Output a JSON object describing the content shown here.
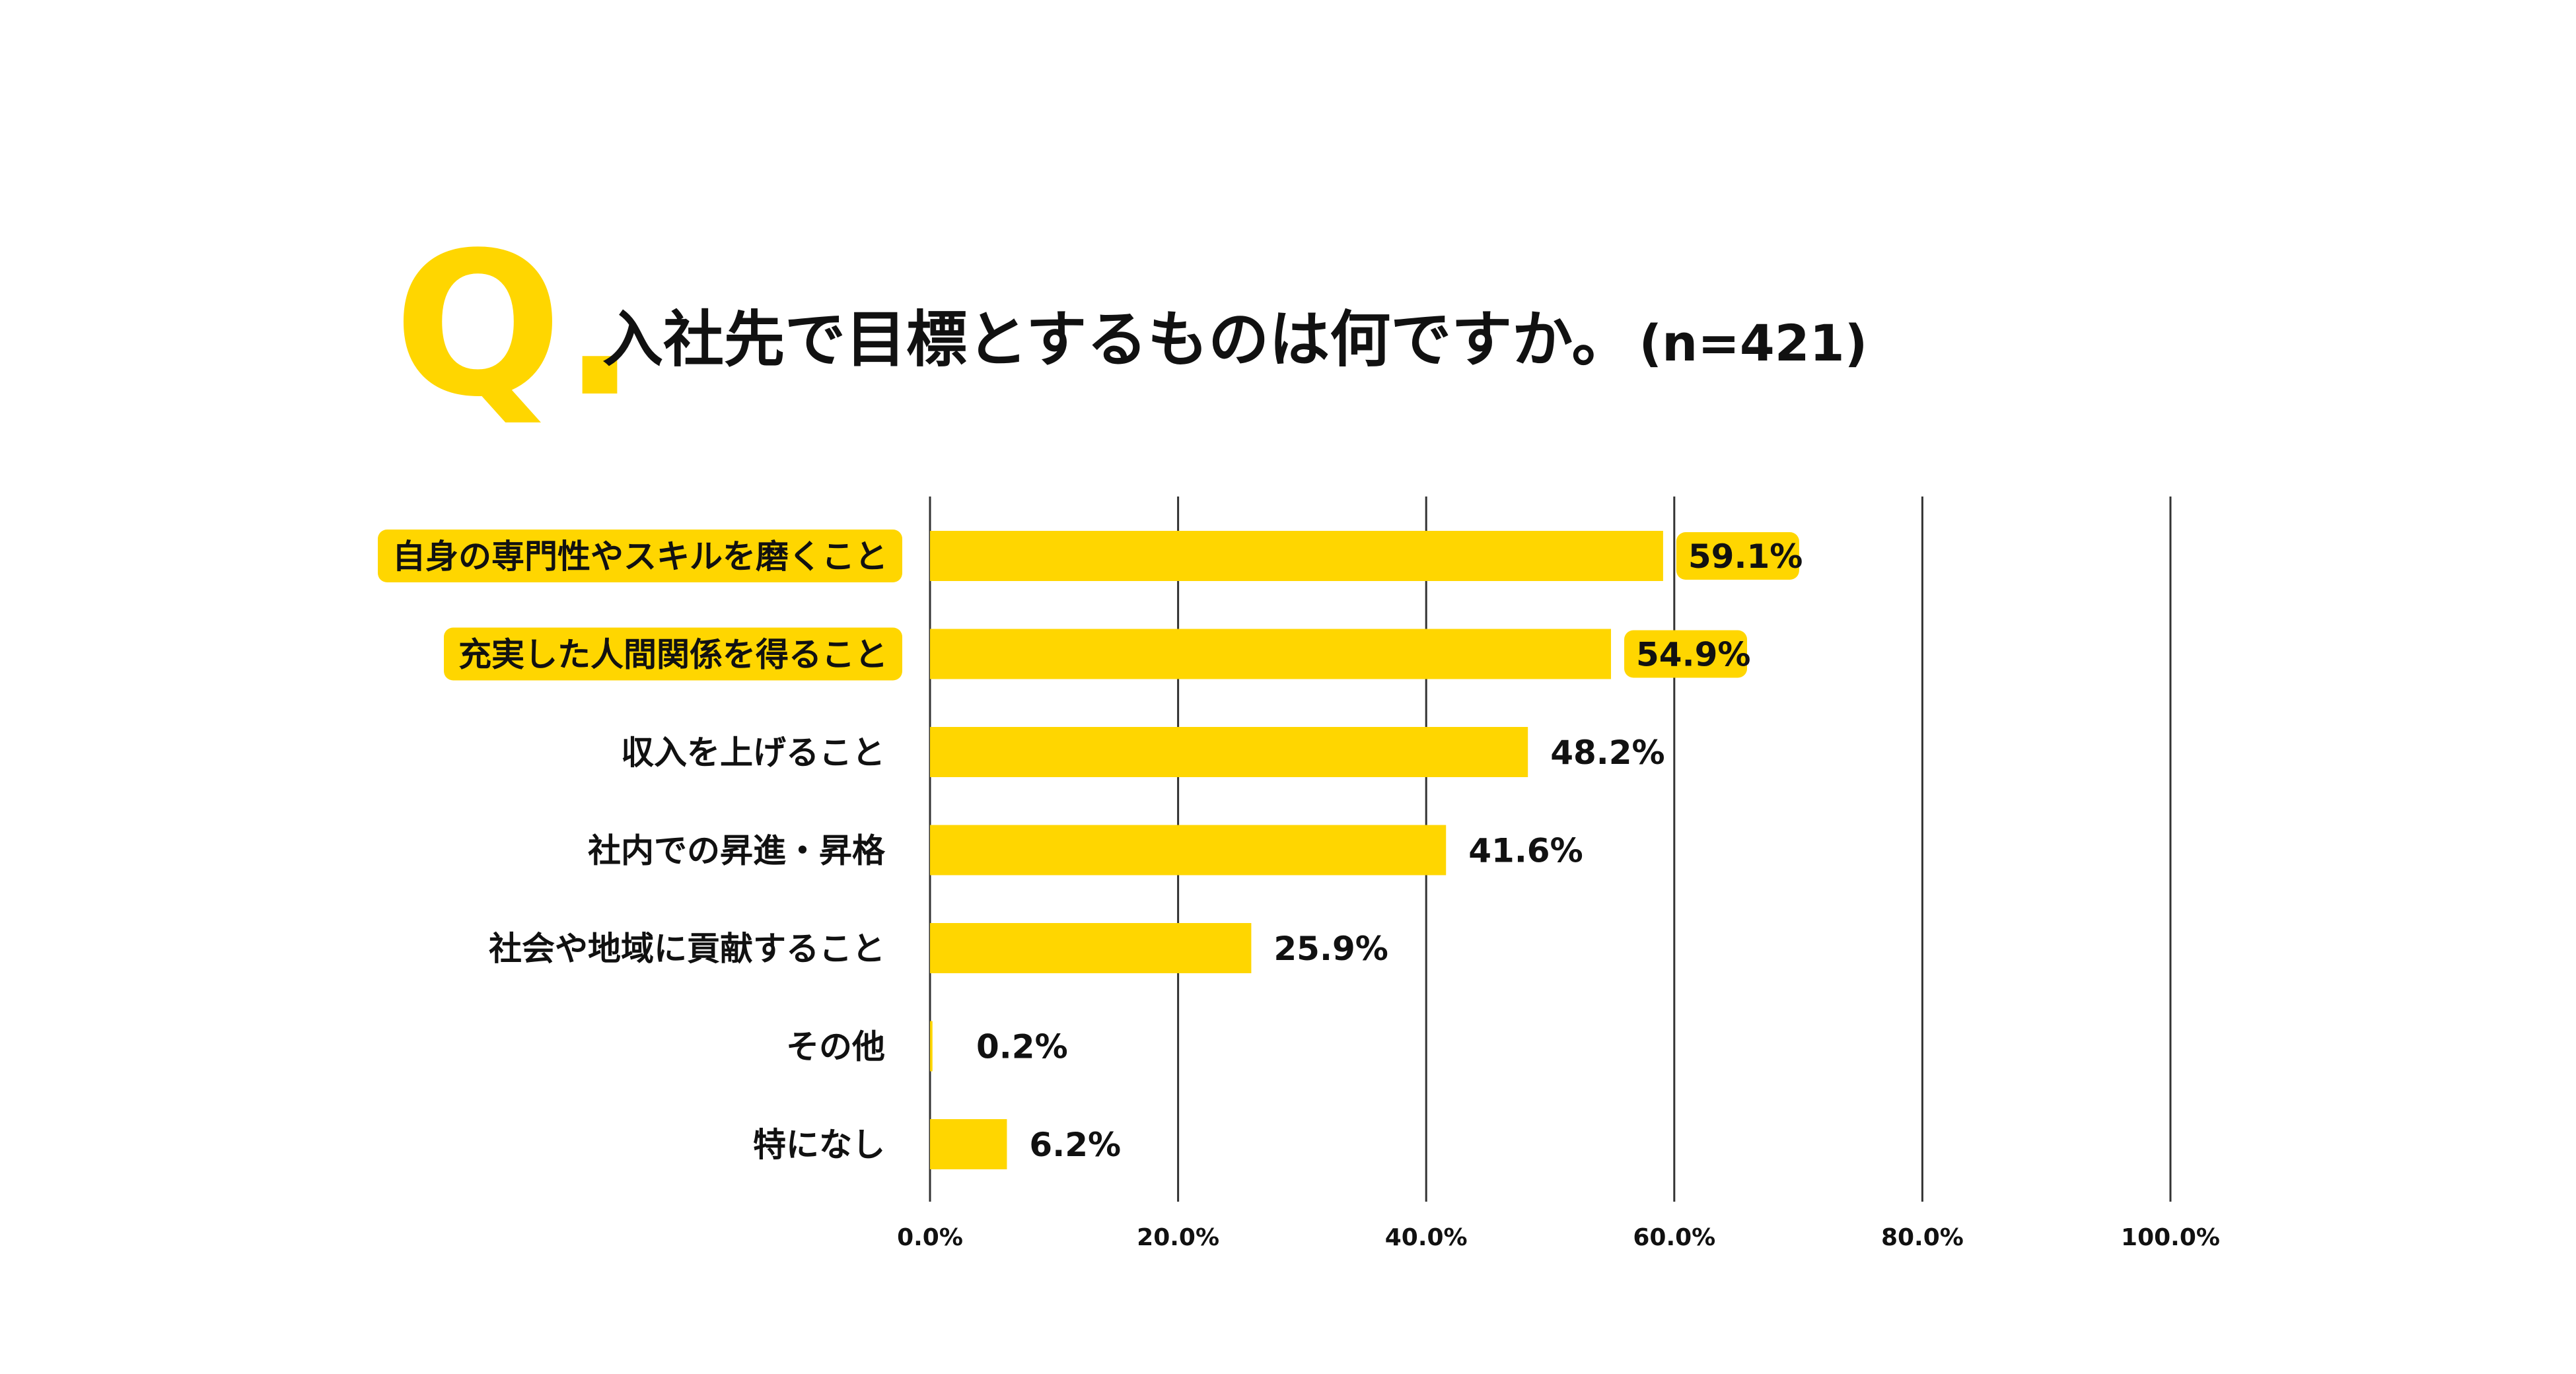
{
  "header": {
    "q_mark": "Q.",
    "question": "入社先で目標とするものは何ですか。",
    "sample_size": "(n=421)"
  },
  "colors": {
    "bar": "#FFD600",
    "highlight": "#FFD600",
    "gridline": "#333333",
    "text": "#111111",
    "background": "#ffffff"
  },
  "chart_data": {
    "type": "bar",
    "orientation": "horizontal",
    "categories": [
      "自身の専門性やスキルを磨くこと",
      "充実した人間関係を得ること",
      "収入を上げること",
      "社内での昇進・昇格",
      "社会や地域に貢献すること",
      "その他",
      "特になし"
    ],
    "values": [
      59.1,
      54.9,
      48.2,
      41.6,
      25.9,
      0.2,
      6.2
    ],
    "value_labels": [
      "59.1%",
      "54.9%",
      "48.2%",
      "41.6%",
      "25.9%",
      "0.2%",
      "6.2%"
    ],
    "highlighted": [
      true,
      true,
      false,
      false,
      false,
      false,
      false
    ],
    "xlim": [
      0,
      100
    ],
    "ticks": [
      0,
      20,
      40,
      60,
      80,
      100
    ],
    "tick_labels": [
      "0.0%",
      "20.0%",
      "40.0%",
      "60.0%",
      "80.0%",
      "100.0%"
    ],
    "grid": true,
    "title": "入社先で目標とするものは何ですか。",
    "xlabel": "",
    "ylabel": ""
  }
}
